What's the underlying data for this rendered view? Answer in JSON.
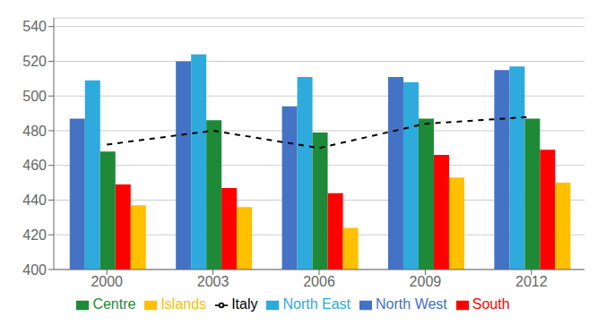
{
  "chart_data": {
    "type": "bar",
    "categories": [
      "2000",
      "2003",
      "2006",
      "2009",
      "2012"
    ],
    "series": [
      {
        "name": "North West",
        "color": "#4472C4",
        "values": [
          487,
          520,
          494,
          511,
          515
        ]
      },
      {
        "name": "North East",
        "color": "#2EAADC",
        "values": [
          509,
          524,
          511,
          508,
          517
        ]
      },
      {
        "name": "Centre",
        "color": "#1E8A38",
        "values": [
          468,
          486,
          479,
          487,
          487
        ]
      },
      {
        "name": "South",
        "color": "#FF0000",
        "values": [
          449,
          447,
          444,
          466,
          469
        ]
      },
      {
        "name": "Islands",
        "color": "#FFC000",
        "values": [
          437,
          436,
          424,
          453,
          450
        ]
      },
      {
        "name": "Italy",
        "type": "line",
        "color": "#000000",
        "line_style": "dashed",
        "values": [
          472,
          480,
          470,
          484,
          488
        ]
      }
    ],
    "ylim": [
      400,
      545
    ],
    "yticks": [
      400,
      420,
      440,
      460,
      480,
      500,
      520,
      540
    ],
    "grid": true,
    "legend": "bottom"
  }
}
